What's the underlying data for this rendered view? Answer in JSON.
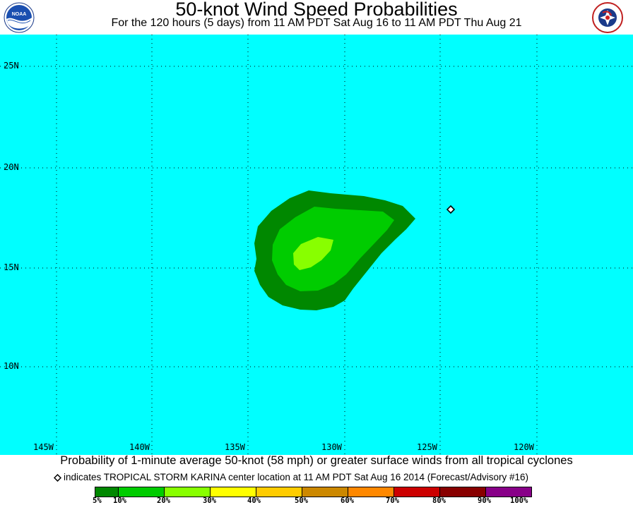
{
  "header": {
    "title": "50-knot Wind Speed Probabilities",
    "subtitle": "For the 120 hours (5 days) from 11 AM PDT Sat Aug 16 to 11 AM PDT Thu Aug 21",
    "left_logo_text": "NOAA",
    "right_logo_text": "NATIONAL WEATHER SERVICE"
  },
  "map": {
    "background_color": "#00ffff",
    "latitude_labels": [
      "25N",
      "20N",
      "15N",
      "10N"
    ],
    "longitude_labels": [
      "145W",
      "140W",
      "135W",
      "130W",
      "125W",
      "120W"
    ],
    "probability_zones": [
      {
        "range": "5-10%",
        "color": "#008800"
      },
      {
        "range": "10-20%",
        "color": "#00cc00"
      },
      {
        "range": "20-30%",
        "color": "#88ff00"
      }
    ],
    "storm_center": {
      "lat": "18N",
      "lon": "124W",
      "marker": "diamond-icon"
    }
  },
  "footer": {
    "caption": "Probability of 1-minute average 50-knot (58 mph) or greater surface winds from all tropical cyclones",
    "storm_note": "indicates TROPICAL STORM KARINA center location at 11 AM PDT Sat Aug 16 2014 (Forecast/Advisory #16)"
  },
  "legend": {
    "colors": [
      "#008800",
      "#00cc00",
      "#88ff00",
      "#ffff00",
      "#ffcc00",
      "#cc8800",
      "#ff8800",
      "#cc0000",
      "#880000",
      "#880088"
    ],
    "labels": [
      "5%",
      "10%",
      "20%",
      "30%",
      "40%",
      "50%",
      "60%",
      "70%",
      "80%",
      "90%",
      "100%"
    ]
  }
}
